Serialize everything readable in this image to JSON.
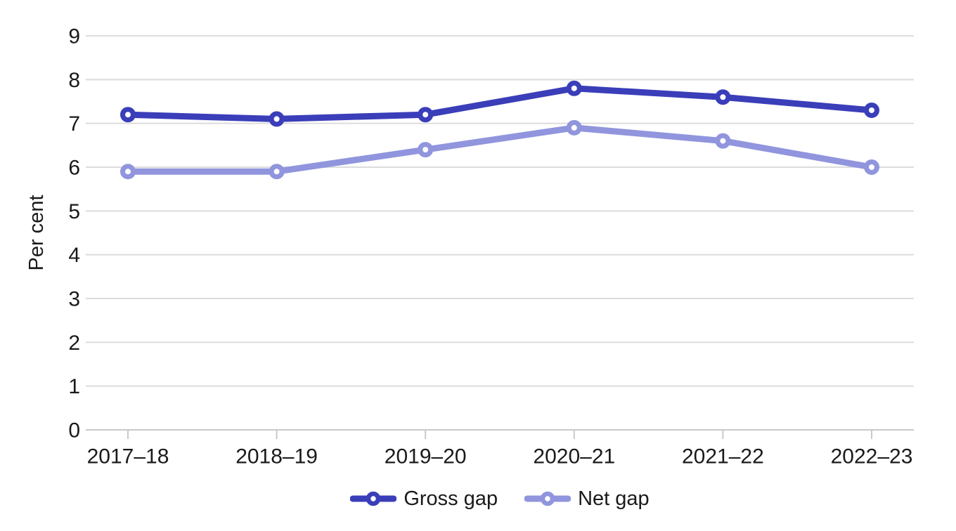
{
  "chart_data": {
    "type": "line",
    "title": "",
    "x": [
      "2017–18",
      "2018–19",
      "2019–20",
      "2020–21",
      "2021–22",
      "2022–23"
    ],
    "series": [
      {
        "name": "Gross gap",
        "color": "#3A3EB9",
        "values": [
          7.2,
          7.1,
          7.2,
          7.8,
          7.6,
          7.3
        ]
      },
      {
        "name": "Net gap",
        "color": "#9095DD",
        "values": [
          5.9,
          5.9,
          6.4,
          6.9,
          6.6,
          6.0
        ]
      }
    ],
    "xlabel": "",
    "ylabel": "Per cent",
    "ylim": [
      0,
      9
    ],
    "yticks": [
      0,
      1,
      2,
      3,
      4,
      5,
      6,
      7,
      8,
      9
    ],
    "grid": "horizontal",
    "legend_position": "bottom",
    "colors": {
      "gridline": "#DCDCDC",
      "axis_line": "#C9C9C9",
      "text": "#1A1A1A",
      "background": "#FFFFFF"
    }
  }
}
